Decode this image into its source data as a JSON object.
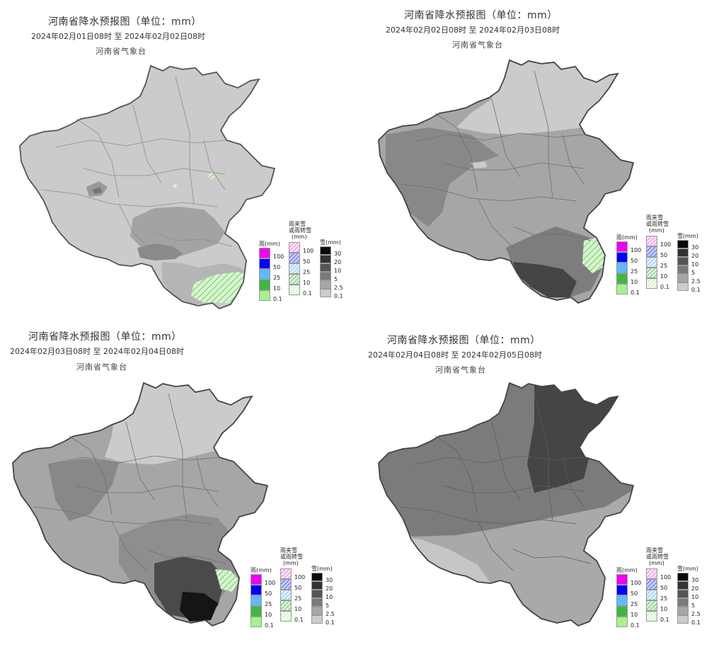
{
  "panels": [
    {
      "title": "河南省降水预报图（单位：mm）",
      "date": "2024年02月01日08时   至   2024年02月02日08时",
      "org": "河南省气象台"
    },
    {
      "title": "河南省降水预报图（单位：mm）",
      "date": "2024年02月02日08时   至   2024年02月03日08时",
      "org": "河南省气象台"
    },
    {
      "title": "河南省降水预报图（单位：mm）",
      "date": "2024年02月03日08时   至   2024年02月04日08时",
      "org": "河南省气象台"
    },
    {
      "title": "河南省降水预报图（单位：mm）",
      "date": "2024年02月04日08时   至   2024年02月05日08时",
      "org": "河南省气象台"
    }
  ],
  "legend": {
    "rain_head": "雨(mm)",
    "mixed_head_1": "雨夹雪",
    "mixed_head_2": "或雨转雪",
    "mixed_head_3": "(mm)",
    "snow_head": "雪(mm)",
    "rain_levels": [
      "100",
      "50",
      "25",
      "10",
      "0.1"
    ],
    "mixed_levels": [
      "100",
      "50",
      "25",
      "10",
      "0.1"
    ],
    "snow_levels": [
      "30",
      "20",
      "10",
      "5",
      "2.5",
      "0.1"
    ],
    "rain_colors": [
      "#f000f0",
      "#0000ff",
      "#61b8ff",
      "#3db83d",
      "#a6f28f"
    ],
    "mixed_colors": [
      "#f0a0f0",
      "#8080ff",
      "#b0d8ff",
      "#80d080",
      "#d0f5c8"
    ],
    "snow_colors": [
      "#0a0a0a",
      "#333333",
      "#555555",
      "#7a7a7a",
      "#a6a6a6",
      "#cccccc"
    ]
  }
}
